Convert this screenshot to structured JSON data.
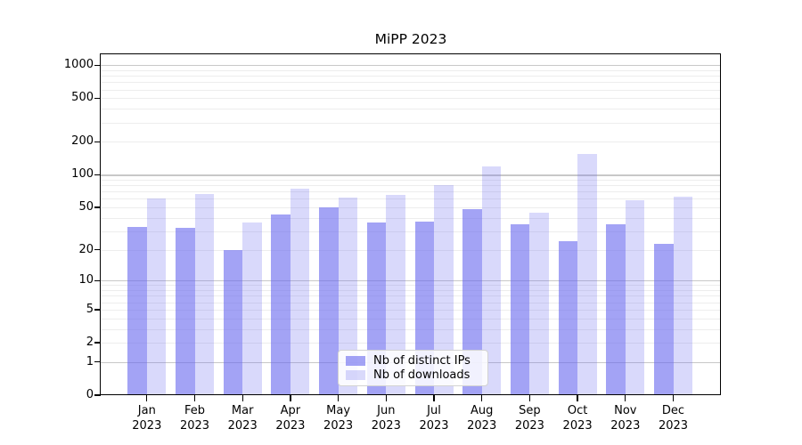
{
  "chart_data": {
    "type": "bar",
    "title": "MiPP 2023",
    "categories": [
      "Jan 2023",
      "Feb 2023",
      "Mar 2023",
      "Apr 2023",
      "May 2023",
      "Jun 2023",
      "Jul 2023",
      "Aug 2023",
      "Sep 2023",
      "Oct 2023",
      "Nov 2023",
      "Dec 2023"
    ],
    "series": [
      {
        "name": "Nb of distinct IPs",
        "color": "rgba(102,102,238,0.6)",
        "values": [
          33,
          32,
          20,
          43,
          50,
          36,
          37,
          48,
          35,
          24,
          35,
          23
        ]
      },
      {
        "name": "Nb of downloads",
        "color": "rgba(102,102,238,0.25)",
        "values": [
          60,
          67,
          36,
          75,
          62,
          65,
          80,
          120,
          45,
          155,
          58,
          63
        ]
      }
    ],
    "xlabel": "",
    "ylabel": "",
    "yscale": "symlog",
    "yticks": [
      0,
      1,
      2,
      5,
      10,
      20,
      50,
      100,
      200,
      500,
      1000
    ],
    "ylim": [
      0,
      1280
    ],
    "grid": true,
    "legend_position": "lower center"
  }
}
